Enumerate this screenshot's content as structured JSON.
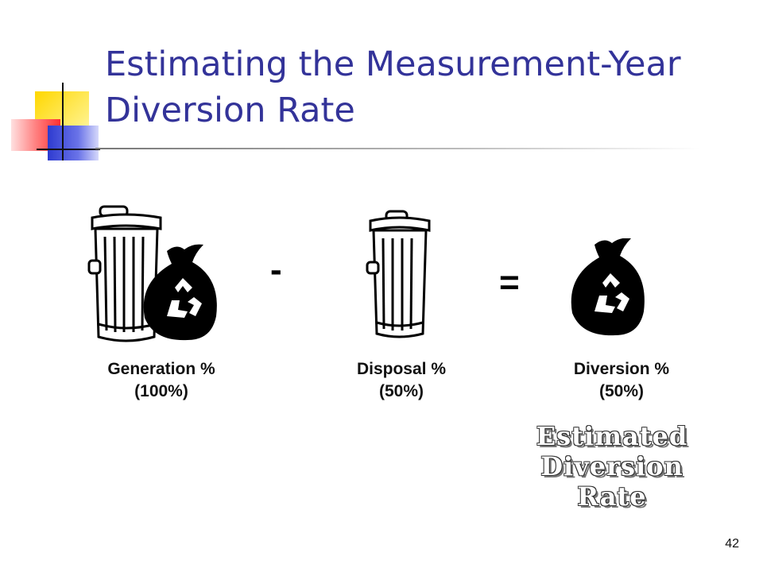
{
  "slide": {
    "title_line1": "Estimating the Measurement-Year",
    "title_line2": "Diversion Rate",
    "page_number": "42"
  },
  "equation": {
    "minus": "-",
    "equals": "=",
    "terms": [
      {
        "line1": "Generation %",
        "line2": "(100%)"
      },
      {
        "line1": "Disposal %",
        "line2": "(50%)"
      },
      {
        "line1": "Diversion %",
        "line2": "(50%)"
      }
    ]
  },
  "stamp": {
    "line1": "Estimated",
    "line2": "Diversion",
    "line3": "Rate"
  },
  "icons": [
    "trash-can-icon",
    "recycling-bag-icon"
  ]
}
